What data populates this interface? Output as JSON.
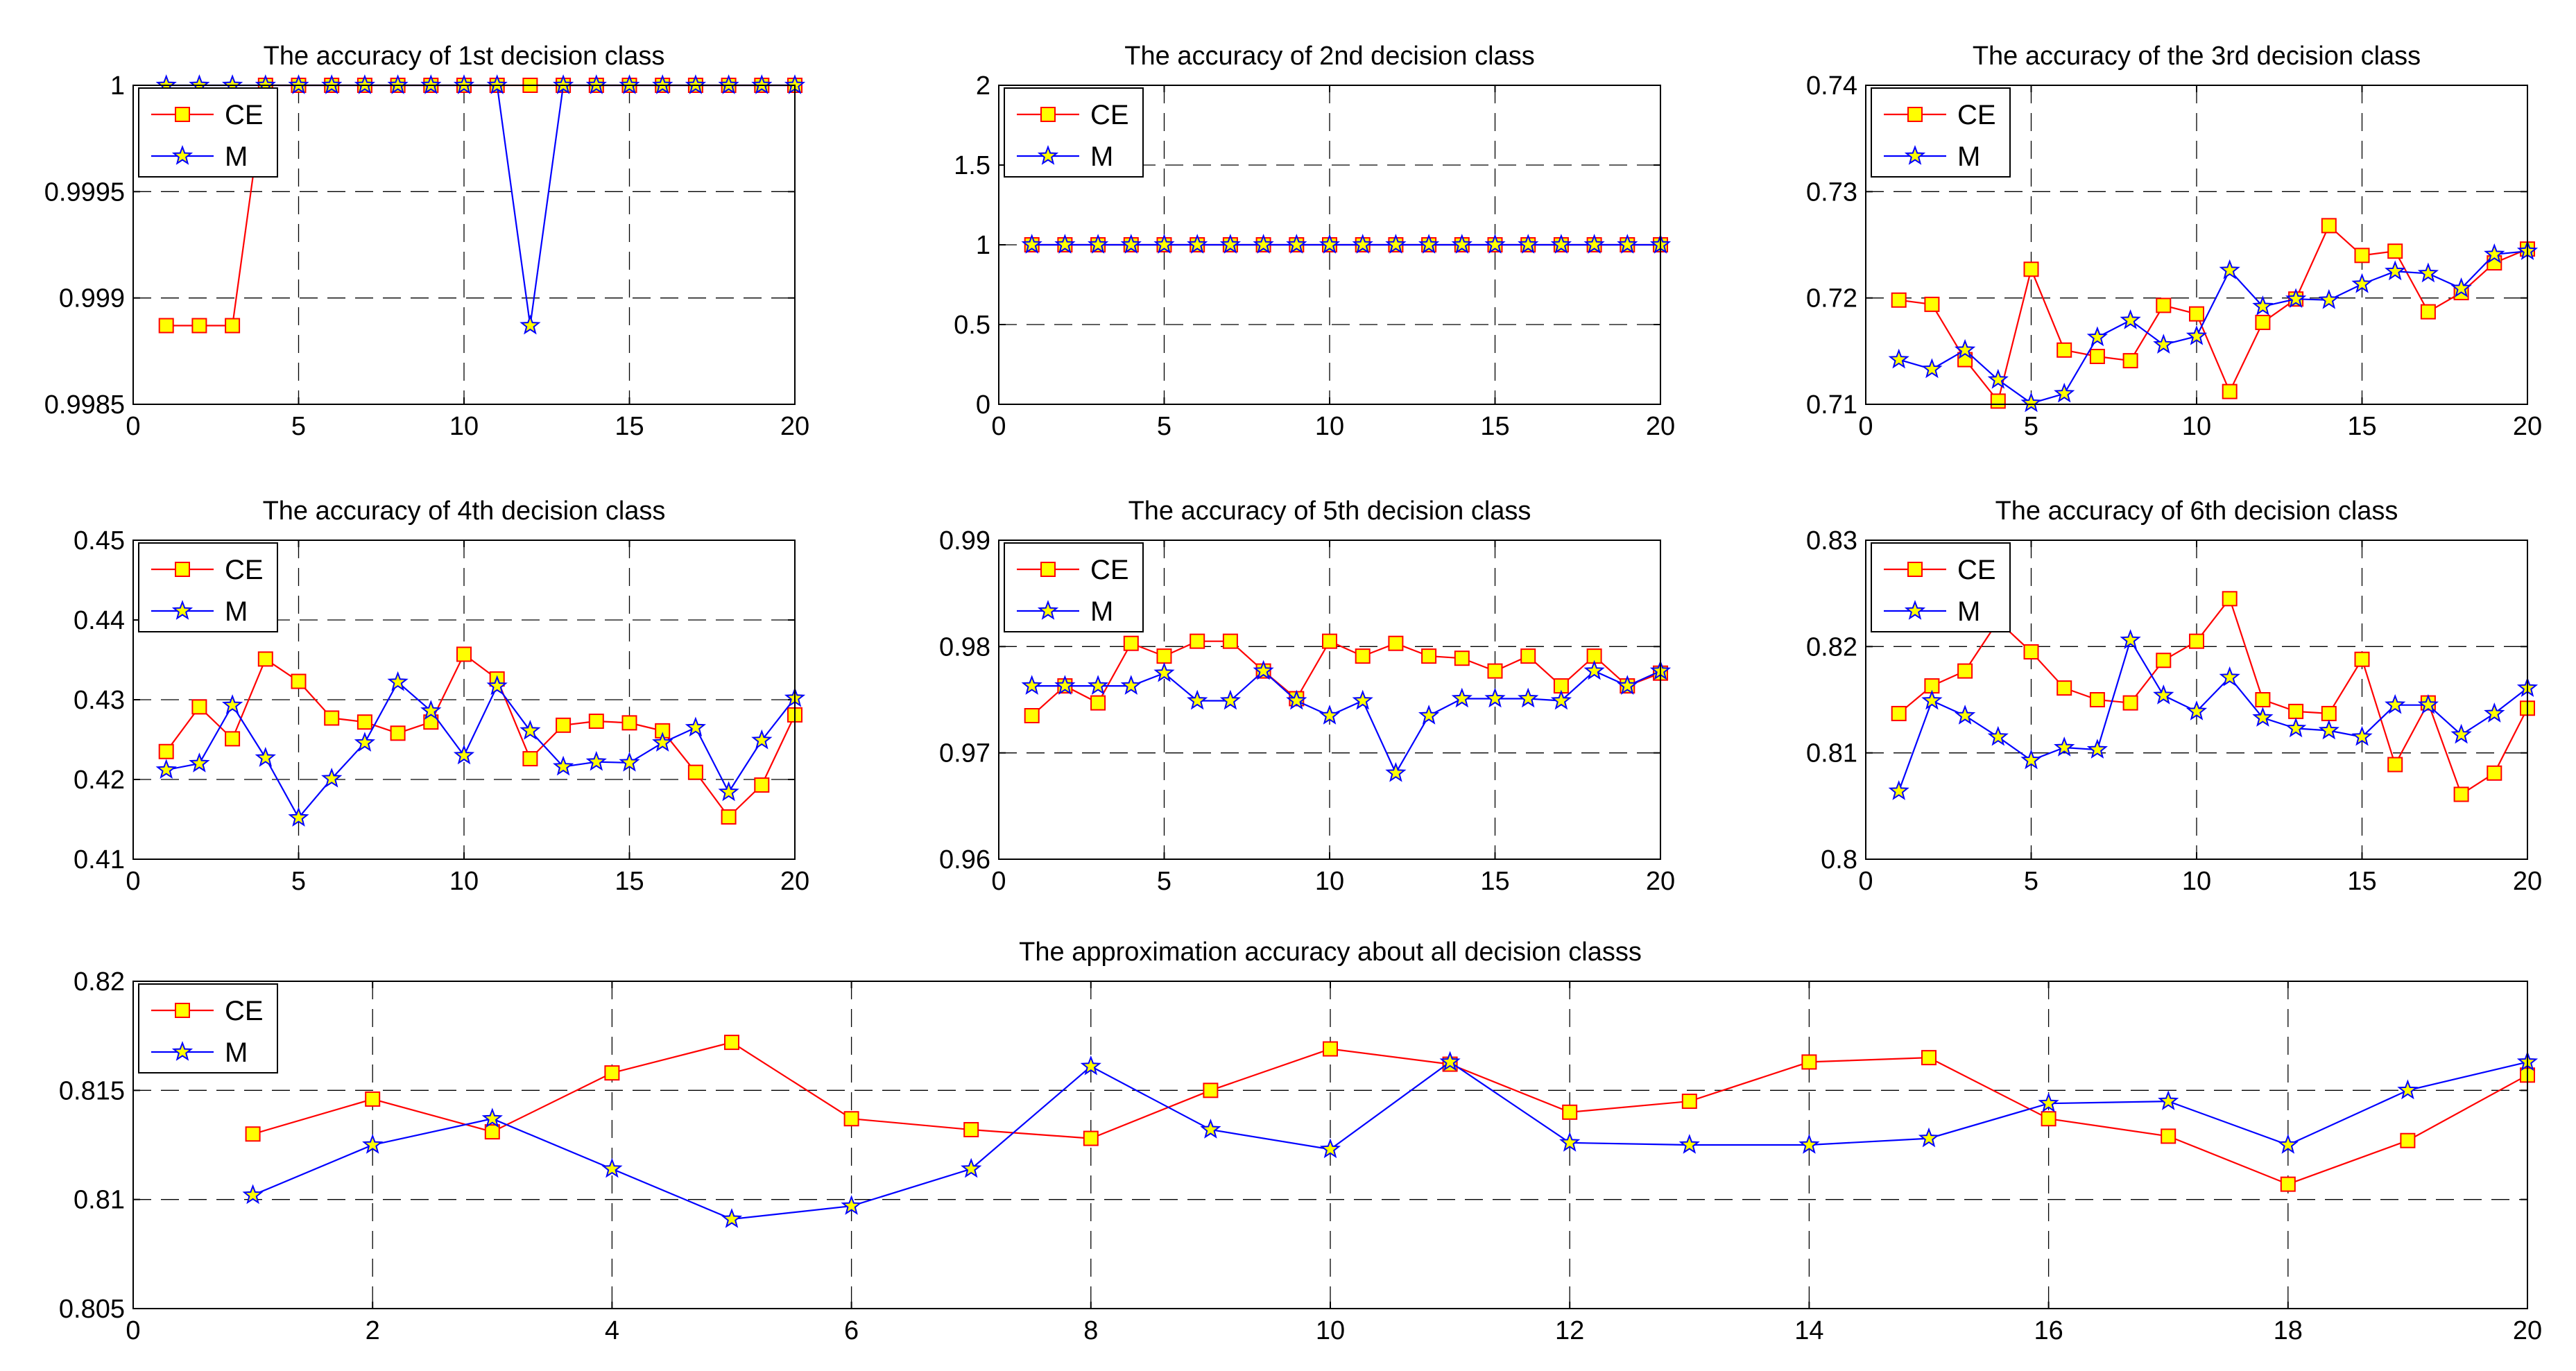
{
  "colors": {
    "ce_line": "#ff0000",
    "ce_marker_fill": "#ffff00",
    "m_line": "#0000ff",
    "m_marker_fill": "#ffff00",
    "grid": "#000000",
    "axis": "#000000"
  },
  "chart_data": [
    {
      "type": "line",
      "title": "The accuracy of 1st decision class",
      "xlim": [
        0,
        20
      ],
      "ylim": [
        0.9985,
        1
      ],
      "xticks": [
        0,
        5,
        10,
        15,
        20
      ],
      "xtick_labels": [
        "0",
        "5",
        "10",
        "15",
        "20"
      ],
      "yticks": [
        0.9985,
        0.999,
        0.9995,
        1
      ],
      "ytick_labels": [
        "0.9985",
        "0.999",
        "0.9995",
        "1"
      ],
      "grid": true,
      "legend": "top-left",
      "x": [
        1,
        2,
        3,
        4,
        5,
        6,
        7,
        8,
        9,
        10,
        11,
        12,
        13,
        14,
        15,
        16,
        17,
        18,
        19,
        20
      ],
      "series": [
        {
          "name": "CE",
          "marker": "square",
          "values": [
            0.99887,
            0.99887,
            0.99887,
            1,
            1,
            1,
            1,
            1,
            1,
            1,
            1,
            1,
            1,
            1,
            1,
            1,
            1,
            1,
            1,
            1
          ]
        },
        {
          "name": "M",
          "marker": "star",
          "values": [
            1,
            1,
            1,
            1,
            1,
            1,
            1,
            1,
            1,
            1,
            1,
            0.99887,
            1,
            1,
            1,
            1,
            1,
            1,
            1,
            1
          ]
        }
      ]
    },
    {
      "type": "line",
      "title": "The accuracy of 2nd decision class",
      "xlim": [
        0,
        20
      ],
      "ylim": [
        0,
        2
      ],
      "xticks": [
        0,
        5,
        10,
        15,
        20
      ],
      "xtick_labels": [
        "0",
        "5",
        "10",
        "15",
        "20"
      ],
      "yticks": [
        0,
        0.5,
        1,
        1.5,
        2
      ],
      "ytick_labels": [
        "0",
        "0.5",
        "1",
        "1.5",
        "2"
      ],
      "grid": true,
      "legend": "top-left",
      "x": [
        1,
        2,
        3,
        4,
        5,
        6,
        7,
        8,
        9,
        10,
        11,
        12,
        13,
        14,
        15,
        16,
        17,
        18,
        19,
        20
      ],
      "series": [
        {
          "name": "CE",
          "marker": "square",
          "values": [
            1,
            1,
            1,
            1,
            1,
            1,
            1,
            1,
            1,
            1,
            1,
            1,
            1,
            1,
            1,
            1,
            1,
            1,
            1,
            1
          ]
        },
        {
          "name": "M",
          "marker": "star",
          "values": [
            1,
            1,
            1,
            1,
            1,
            1,
            1,
            1,
            1,
            1,
            1,
            1,
            1,
            1,
            1,
            1,
            1,
            1,
            1,
            1
          ]
        }
      ]
    },
    {
      "type": "line",
      "title": "The accuracy of the 3rd decision class",
      "xlim": [
        0,
        20
      ],
      "ylim": [
        0.71,
        0.74
      ],
      "xticks": [
        0,
        5,
        10,
        15,
        20
      ],
      "xtick_labels": [
        "0",
        "5",
        "10",
        "15",
        "20"
      ],
      "yticks": [
        0.71,
        0.72,
        0.73,
        0.74
      ],
      "ytick_labels": [
        "0.71",
        "0.72",
        "0.73",
        "0.74"
      ],
      "grid": true,
      "legend": "top-left",
      "x": [
        1,
        2,
        3,
        4,
        5,
        6,
        7,
        8,
        9,
        10,
        11,
        12,
        13,
        14,
        15,
        16,
        17,
        18,
        19,
        20
      ],
      "series": [
        {
          "name": "CE",
          "marker": "square",
          "values": [
            0.7198,
            0.7194,
            0.7142,
            0.7103,
            0.7227,
            0.7151,
            0.7145,
            0.7141,
            0.7193,
            0.7185,
            0.7112,
            0.7177,
            0.7199,
            0.7268,
            0.724,
            0.7244,
            0.7187,
            0.7205,
            0.7233,
            0.7246
          ]
        },
        {
          "name": "M",
          "marker": "star",
          "values": [
            0.7142,
            0.7133,
            0.7151,
            0.7123,
            0.7101,
            0.711,
            0.7163,
            0.7179,
            0.7156,
            0.7164,
            0.7226,
            0.7192,
            0.7199,
            0.7198,
            0.7213,
            0.7225,
            0.7223,
            0.7209,
            0.7241,
            0.7244
          ]
        }
      ]
    },
    {
      "type": "line",
      "title": "The accuracy of 4th decision class",
      "xlim": [
        0,
        20
      ],
      "ylim": [
        0.41,
        0.45
      ],
      "xticks": [
        0,
        5,
        10,
        15,
        20
      ],
      "xtick_labels": [
        "0",
        "5",
        "10",
        "15",
        "20"
      ],
      "yticks": [
        0.41,
        0.42,
        0.43,
        0.44,
        0.45
      ],
      "ytick_labels": [
        "0.41",
        "0.42",
        "0.43",
        "0.44",
        "0.45"
      ],
      "grid": true,
      "legend": "top-left",
      "x": [
        1,
        2,
        3,
        4,
        5,
        6,
        7,
        8,
        9,
        10,
        11,
        12,
        13,
        14,
        15,
        16,
        17,
        18,
        19,
        20
      ],
      "series": [
        {
          "name": "CE",
          "marker": "square",
          "values": [
            0.4235,
            0.4291,
            0.4251,
            0.4351,
            0.4323,
            0.4277,
            0.4272,
            0.4258,
            0.4272,
            0.4357,
            0.4326,
            0.4226,
            0.4268,
            0.4273,
            0.4271,
            0.4261,
            0.4209,
            0.4153,
            0.4193,
            0.4281
          ]
        },
        {
          "name": "M",
          "marker": "star",
          "values": [
            0.4212,
            0.422,
            0.4293,
            0.4227,
            0.4152,
            0.4201,
            0.4246,
            0.4322,
            0.4286,
            0.423,
            0.4317,
            0.4261,
            0.4216,
            0.4222,
            0.4221,
            0.4246,
            0.4265,
            0.4184,
            0.4249,
            0.4302
          ]
        }
      ]
    },
    {
      "type": "line",
      "title": "The accuracy of 5th decision class",
      "xlim": [
        0,
        20
      ],
      "ylim": [
        0.96,
        0.99
      ],
      "xticks": [
        0,
        5,
        10,
        15,
        20
      ],
      "xtick_labels": [
        "0",
        "5",
        "10",
        "15",
        "20"
      ],
      "yticks": [
        0.96,
        0.97,
        0.98,
        0.99
      ],
      "ytick_labels": [
        "0.96",
        "0.97",
        "0.98",
        "0.99"
      ],
      "grid": true,
      "legend": "top-left",
      "x": [
        1,
        2,
        3,
        4,
        5,
        6,
        7,
        8,
        9,
        10,
        11,
        12,
        13,
        14,
        15,
        16,
        17,
        18,
        19,
        20
      ],
      "series": [
        {
          "name": "CE",
          "marker": "square",
          "values": [
            0.9735,
            0.9763,
            0.9747,
            0.9803,
            0.9791,
            0.9805,
            0.9805,
            0.9777,
            0.9751,
            0.9805,
            0.9791,
            0.9803,
            0.9791,
            0.9789,
            0.9777,
            0.9791,
            0.9763,
            0.9791,
            0.9763,
            0.9775
          ]
        },
        {
          "name": "M",
          "marker": "star",
          "values": [
            0.9763,
            0.9763,
            0.9763,
            0.9763,
            0.9775,
            0.9749,
            0.9749,
            0.9777,
            0.9749,
            0.9735,
            0.9749,
            0.9681,
            0.9735,
            0.9751,
            0.9751,
            0.9751,
            0.9749,
            0.9777,
            0.9763,
            0.9777
          ]
        }
      ]
    },
    {
      "type": "line",
      "title": "The accuracy of 6th decision class",
      "xlim": [
        0,
        20
      ],
      "ylim": [
        0.8,
        0.83
      ],
      "xticks": [
        0,
        5,
        10,
        15,
        20
      ],
      "xtick_labels": [
        "0",
        "5",
        "10",
        "15",
        "20"
      ],
      "yticks": [
        0.8,
        0.81,
        0.82,
        0.83
      ],
      "ytick_labels": [
        "0.8",
        "0.81",
        "0.82",
        "0.83"
      ],
      "grid": true,
      "legend": "top-left",
      "x": [
        1,
        2,
        3,
        4,
        5,
        6,
        7,
        8,
        9,
        10,
        11,
        12,
        13,
        14,
        15,
        16,
        17,
        18,
        19,
        20
      ],
      "series": [
        {
          "name": "CE",
          "marker": "square",
          "values": [
            0.8137,
            0.8163,
            0.8177,
            0.8224,
            0.8195,
            0.8161,
            0.815,
            0.8147,
            0.8187,
            0.8205,
            0.8245,
            0.815,
            0.8139,
            0.8137,
            0.8188,
            0.8089,
            0.8147,
            0.8061,
            0.8081,
            0.8142
          ]
        },
        {
          "name": "M",
          "marker": "star",
          "values": [
            0.8064,
            0.8149,
            0.8135,
            0.8115,
            0.8093,
            0.8105,
            0.8103,
            0.8206,
            0.8154,
            0.8139,
            0.8171,
            0.8133,
            0.8123,
            0.8121,
            0.8115,
            0.8145,
            0.8145,
            0.8117,
            0.8137,
            0.8161
          ]
        }
      ]
    },
    {
      "type": "line",
      "title": "The approximation accuracy about all decision classs",
      "xlim": [
        0,
        20
      ],
      "ylim": [
        0.805,
        0.82
      ],
      "xticks": [
        0,
        2,
        4,
        6,
        8,
        10,
        12,
        14,
        16,
        18,
        20
      ],
      "xtick_labels": [
        "0",
        "2",
        "4",
        "6",
        "8",
        "10",
        "12",
        "14",
        "16",
        "18",
        "20"
      ],
      "yticks": [
        0.805,
        0.81,
        0.815,
        0.82
      ],
      "ytick_labels": [
        "0.805",
        "0.81",
        "0.815",
        "0.82"
      ],
      "grid": true,
      "legend": "top-left",
      "x": [
        1,
        2,
        3,
        4,
        5,
        6,
        7,
        8,
        9,
        10,
        11,
        12,
        13,
        14,
        15,
        16,
        17,
        18,
        19,
        20
      ],
      "series": [
        {
          "name": "CE",
          "marker": "square",
          "values": [
            0.813,
            0.8146,
            0.8131,
            0.8158,
            0.8172,
            0.8137,
            0.8132,
            0.8128,
            0.815,
            0.8169,
            0.8162,
            0.814,
            0.8145,
            0.8163,
            0.8165,
            0.8137,
            0.8129,
            0.8107,
            0.8127,
            0.8157
          ]
        },
        {
          "name": "M",
          "marker": "star",
          "values": [
            0.8102,
            0.8125,
            0.8137,
            0.8114,
            0.8091,
            0.8097,
            0.8114,
            0.8161,
            0.8132,
            0.8123,
            0.8163,
            0.8126,
            0.8125,
            0.8125,
            0.8128,
            0.8144,
            0.8145,
            0.8125,
            0.815,
            0.8163
          ]
        }
      ]
    }
  ]
}
